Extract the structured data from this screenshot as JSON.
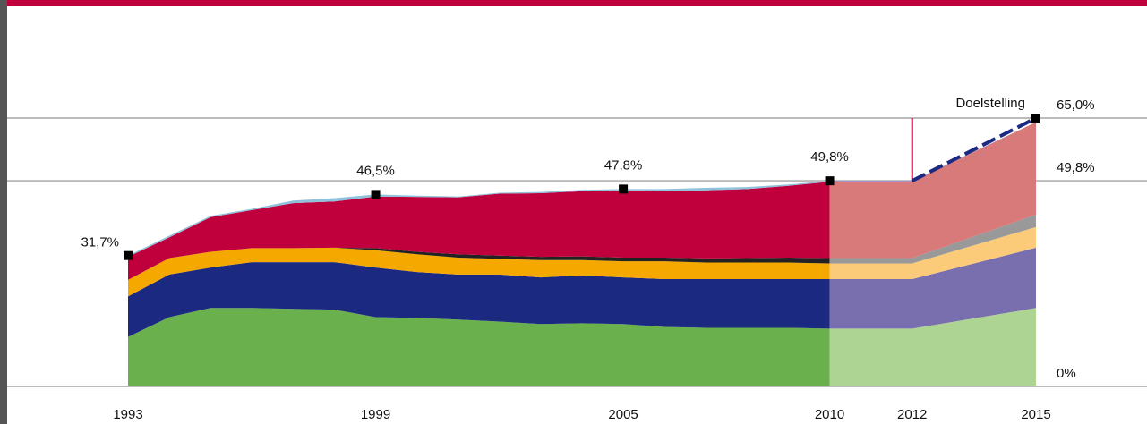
{
  "chart_data": {
    "type": "stacked_area",
    "x": [
      1993,
      1994,
      1995,
      1996,
      1997,
      1998,
      1999,
      2000,
      2001,
      2002,
      2003,
      2004,
      2005,
      2006,
      2007,
      2008,
      2009,
      2010,
      2012,
      2015
    ],
    "xlim": [
      1993,
      2015
    ],
    "xticks": [
      1993,
      1999,
      2005,
      2010,
      2012,
      2015
    ],
    "ylim": [
      0,
      65
    ],
    "yticks": [
      {
        "value": 0,
        "label": "0%"
      },
      {
        "value": 49.8,
        "label": "49,8%"
      },
      {
        "value": 65,
        "label": "65,0%"
      }
    ],
    "grid": true,
    "projection_start": 2010,
    "series": [
      {
        "color": "#6ab04c",
        "projection_color": "#aed494",
        "values": [
          12.0,
          16.8,
          19.0,
          19.0,
          18.8,
          18.6,
          16.8,
          16.6,
          16.2,
          15.7,
          15.1,
          15.3,
          15.1,
          14.4,
          14.2,
          14.2,
          14.2,
          14.0,
          14.0,
          19.0
        ]
      },
      {
        "color": "#1b2a80",
        "projection_color": "#7a6fae",
        "values": [
          9.8,
          10.3,
          9.8,
          11.1,
          11.3,
          11.5,
          12.0,
          11.1,
          10.9,
          11.4,
          11.3,
          11.6,
          11.3,
          11.6,
          11.8,
          11.8,
          11.8,
          12.0,
          12.0,
          14.6
        ]
      },
      {
        "color": "#f5a800",
        "projection_color": "#fccb7a",
        "values": [
          4.0,
          4.0,
          3.8,
          3.4,
          3.4,
          3.5,
          4.2,
          4.3,
          4.1,
          3.8,
          4.2,
          3.7,
          3.9,
          4.3,
          4.0,
          4.0,
          4.0,
          3.8,
          3.8,
          5.0
        ]
      },
      {
        "color": "#222222",
        "projection_color": "#999999",
        "values": [
          0,
          0,
          0,
          0,
          0,
          0,
          0.5,
          0.6,
          0.8,
          0.8,
          0.8,
          0.9,
          0.9,
          0.9,
          1.0,
          1.1,
          1.2,
          1.3,
          1.3,
          3.0
        ]
      },
      {
        "color": "#c0003c",
        "projection_color": "#d97a7a",
        "values": [
          5.6,
          5.0,
          8.4,
          9.2,
          10.9,
          11.2,
          12.5,
          13.3,
          13.8,
          15.0,
          15.4,
          15.8,
          16.3,
          16.2,
          16.5,
          16.7,
          17.4,
          18.5,
          18.5,
          22.4
        ]
      },
      {
        "color": "#8fc1dc",
        "projection_color": "#9a8fc0",
        "values": [
          0.3,
          0.4,
          0.3,
          0.3,
          0.6,
          0.8,
          0.5,
          0.3,
          0.2,
          0.2,
          0.3,
          0.3,
          0.3,
          0.4,
          0.6,
          0.5,
          0.3,
          0.2,
          0.2,
          0
        ]
      }
    ],
    "points": {
      "x": [
        1993,
        1999,
        2005,
        2010
      ],
      "values": [
        31.7,
        46.5,
        47.8,
        49.8
      ],
      "value_labels": [
        "31,7%",
        "46,5%",
        "47,8%",
        "49,8%"
      ]
    },
    "target": {
      "name": "Doelstelling",
      "x": [
        2012,
        2015
      ],
      "values": [
        49.8,
        65.0
      ],
      "color": "#1b2a80"
    }
  }
}
